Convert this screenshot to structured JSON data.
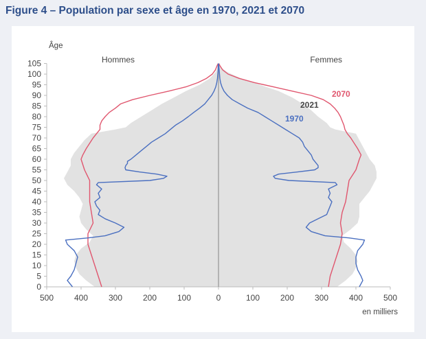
{
  "figure_title": "Figure 4 – Population par sexe et âge en 1970, 2021 et 2070",
  "chart_data": {
    "type": "area",
    "title": "Figure 4 – Population par sexe et âge en 1970, 2021 et 2070",
    "ylabel": "Âge",
    "xlabel": "en milliers",
    "ylim": [
      0,
      105
    ],
    "xlim_left": [
      0,
      500
    ],
    "xlim_right": [
      0,
      500
    ],
    "y_ticks": [
      0,
      5,
      10,
      15,
      20,
      25,
      30,
      35,
      40,
      45,
      50,
      55,
      60,
      65,
      70,
      75,
      80,
      85,
      90,
      95,
      100,
      105
    ],
    "y_tick_labels": [
      "0",
      "5",
      "10",
      "15",
      "20",
      "25",
      "30",
      "35",
      "40",
      "45",
      "50",
      "55",
      "60",
      "65",
      "70",
      "75",
      "80",
      "85",
      "90",
      "95",
      "100",
      "105"
    ],
    "x_tick_labels": [
      "500",
      "400",
      "300",
      "200",
      "100",
      "0",
      "100",
      "200",
      "300",
      "400",
      "500"
    ],
    "panel_labels": {
      "left": "Hommes",
      "right": "Femmes"
    },
    "grid": false,
    "colors": {
      "2021": "#e2e2e2",
      "1970": "#4a6fc0",
      "2070": "#e0566e",
      "axis": "#bbbbbb",
      "center": "#9a9a9a",
      "text": "#444444"
    },
    "series": [
      {
        "name": "2021",
        "role": "filled-area",
        "ages": [
          0,
          3,
          6,
          9,
          12,
          15,
          18,
          21,
          24,
          27,
          30,
          33,
          36,
          39,
          42,
          45,
          48,
          51,
          54,
          57,
          60,
          63,
          66,
          69,
          72,
          74,
          75,
          77,
          80,
          83,
          86,
          89,
          92,
          95,
          98,
          101,
          103,
          105
        ],
        "male": [
          360,
          385,
          405,
          415,
          420,
          415,
          400,
          375,
          365,
          385,
          400,
          405,
          400,
          395,
          405,
          420,
          440,
          450,
          440,
          430,
          430,
          420,
          405,
          390,
          370,
          300,
          270,
          255,
          225,
          195,
          165,
          130,
          95,
          55,
          25,
          8,
          3,
          1
        ],
        "female": [
          345,
          370,
          390,
          400,
          405,
          400,
          385,
          365,
          360,
          385,
          405,
          410,
          410,
          410,
          425,
          440,
          450,
          460,
          460,
          455,
          440,
          430,
          420,
          410,
          400,
          340,
          325,
          315,
          290,
          270,
          245,
          215,
          175,
          120,
          65,
          25,
          8,
          2
        ]
      },
      {
        "name": "1970",
        "role": "line",
        "ages": [
          0,
          3,
          5,
          8,
          11,
          14,
          17,
          20,
          22,
          23,
          24,
          26,
          28,
          30,
          32,
          34,
          36,
          38,
          40,
          42,
          44,
          46,
          48,
          49,
          50,
          51,
          52,
          53,
          54,
          55,
          56,
          57,
          58,
          59,
          60,
          62,
          64,
          66,
          68,
          70,
          72,
          74,
          76,
          78,
          80,
          82,
          84,
          86,
          88,
          90,
          92,
          94,
          96,
          98,
          100,
          102,
          104,
          105
        ],
        "male": [
          425,
          440,
          430,
          420,
          415,
          410,
          420,
          440,
          445,
          380,
          330,
          290,
          275,
          300,
          330,
          350,
          345,
          355,
          360,
          345,
          350,
          340,
          355,
          350,
          200,
          160,
          150,
          180,
          230,
          270,
          272,
          270,
          265,
          265,
          255,
          240,
          225,
          210,
          195,
          175,
          155,
          140,
          125,
          105,
          88,
          72,
          55,
          40,
          30,
          20,
          13,
          8,
          5,
          3,
          2,
          1,
          1,
          0
        ],
        "female": [
          410,
          420,
          415,
          405,
          400,
          400,
          405,
          420,
          425,
          380,
          310,
          270,
          255,
          265,
          290,
          315,
          320,
          325,
          330,
          320,
          325,
          320,
          345,
          340,
          205,
          165,
          160,
          175,
          230,
          280,
          290,
          290,
          285,
          280,
          275,
          270,
          260,
          250,
          245,
          235,
          215,
          195,
          175,
          155,
          135,
          115,
          85,
          62,
          40,
          26,
          16,
          10,
          6,
          4,
          3,
          2,
          1,
          0
        ]
      },
      {
        "name": "2070",
        "role": "line",
        "ages": [
          0,
          5,
          10,
          15,
          20,
          25,
          30,
          35,
          40,
          45,
          50,
          55,
          60,
          62,
          65,
          70,
          72,
          74,
          76,
          78,
          80,
          82,
          84,
          86,
          88,
          90,
          92,
          94,
          96,
          98,
          100,
          102,
          104,
          105
        ],
        "male": [
          340,
          350,
          360,
          370,
          380,
          380,
          365,
          370,
          375,
          375,
          375,
          390,
          400,
          395,
          385,
          365,
          355,
          345,
          345,
          340,
          330,
          318,
          300,
          285,
          250,
          200,
          145,
          95,
          60,
          35,
          18,
          9,
          4,
          1
        ],
        "female": [
          320,
          325,
          335,
          345,
          355,
          360,
          355,
          360,
          370,
          375,
          380,
          400,
          410,
          415,
          405,
          385,
          375,
          368,
          365,
          360,
          355,
          348,
          338,
          325,
          305,
          270,
          215,
          160,
          105,
          60,
          28,
          12,
          4,
          1
        ]
      }
    ],
    "series_labels": [
      {
        "name": "2070",
        "text": "2070",
        "color": "#e0566e"
      },
      {
        "name": "2021",
        "text": "2021",
        "color": "#444444"
      },
      {
        "name": "1970",
        "text": "1970",
        "color": "#4a6fc0"
      }
    ]
  }
}
